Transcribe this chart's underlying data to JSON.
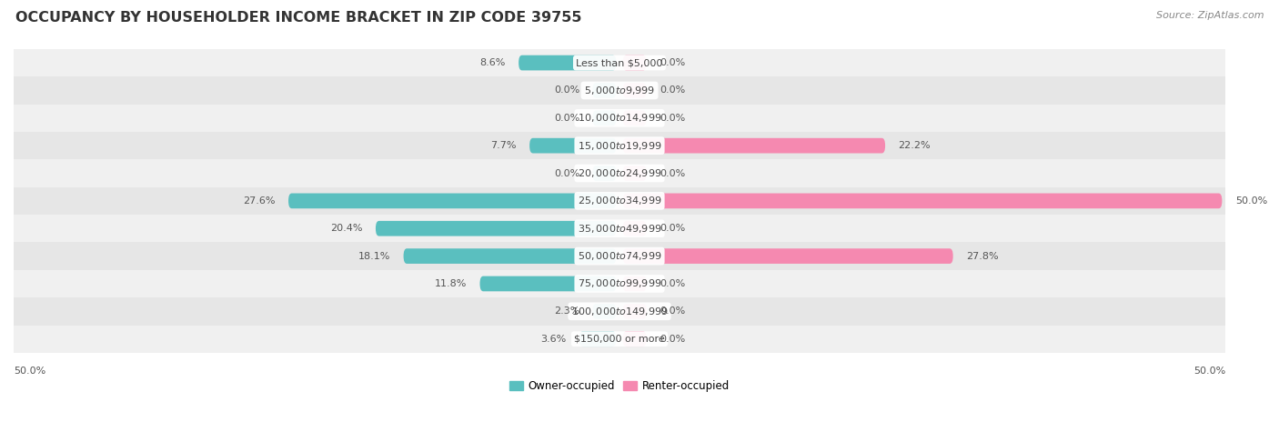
{
  "title": "OCCUPANCY BY HOUSEHOLDER INCOME BRACKET IN ZIP CODE 39755",
  "source": "Source: ZipAtlas.com",
  "categories": [
    "Less than $5,000",
    "$5,000 to $9,999",
    "$10,000 to $14,999",
    "$15,000 to $19,999",
    "$20,000 to $24,999",
    "$25,000 to $34,999",
    "$35,000 to $49,999",
    "$50,000 to $74,999",
    "$75,000 to $99,999",
    "$100,000 to $149,999",
    "$150,000 or more"
  ],
  "owner_values": [
    8.6,
    0.0,
    0.0,
    7.7,
    0.0,
    27.6,
    20.4,
    18.1,
    11.8,
    2.3,
    3.6
  ],
  "renter_values": [
    0.0,
    0.0,
    0.0,
    22.2,
    0.0,
    50.0,
    0.0,
    27.8,
    0.0,
    0.0,
    0.0
  ],
  "owner_color": "#5abfbf",
  "renter_color": "#f589b0",
  "row_bg_colors": [
    "#f0f0f0",
    "#e6e6e6"
  ],
  "max_value": 50.0,
  "min_bar": 2.5,
  "title_fontsize": 11.5,
  "label_fontsize": 8,
  "category_fontsize": 8,
  "source_fontsize": 8,
  "legend_fontsize": 8.5,
  "axis_label_fontsize": 8,
  "bar_height": 0.55
}
